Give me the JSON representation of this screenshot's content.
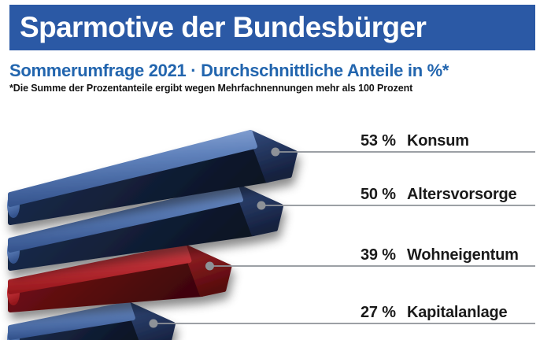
{
  "header": {
    "title": "Sparmotive der Bundesbürger",
    "subtitle": "Sommerumfrage 2021 · Durchschnittliche Anteile in %*",
    "footnote": "*Die Summe der Prozentanteile ergibt wegen Mehrfachnennungen mehr als 100 Prozent"
  },
  "colors": {
    "banner_bg": "#2B59A5",
    "banner_text": "#FFFFFF",
    "subtitle_text": "#2265AE",
    "footnote_text": "#141414",
    "bar_blue": "#43639E",
    "bar_blue_dark": "#0E1B33",
    "bar_red": "#C23238",
    "bar_red_dark": "#46070A",
    "leader_line": "#8E9298",
    "label_text": "#1A1A1A"
  },
  "chart_data": {
    "type": "bar",
    "orientation": "horizontal-3d",
    "title": "Sparmotive der Bundesbürger",
    "subtitle": "Sommerumfrage 2021 · Durchschnittliche Anteile in %*",
    "footnote": "*Die Summe der Prozentanteile ergibt wegen Mehrfachnennungen mehr als 100 Prozent",
    "unit": "%",
    "value_axis_note": "Mehrfachnennungen möglich, Summe > 100 %",
    "categories": [
      "Konsum",
      "Altersvorsorge",
      "Wohneigentum",
      "Kapitalanlage"
    ],
    "values": [
      53,
      50,
      39,
      27
    ],
    "highlight_index": 2,
    "legend": "none",
    "grid": false,
    "rows": [
      {
        "label": "Konsum",
        "value": 53,
        "color": "blue"
      },
      {
        "label": "Altersvorsorge",
        "value": 50,
        "color": "blue"
      },
      {
        "label": "Wohneigentum",
        "value": 39,
        "color": "red"
      },
      {
        "label": "Kapitalanlage",
        "value": 27,
        "color": "blue"
      }
    ]
  }
}
